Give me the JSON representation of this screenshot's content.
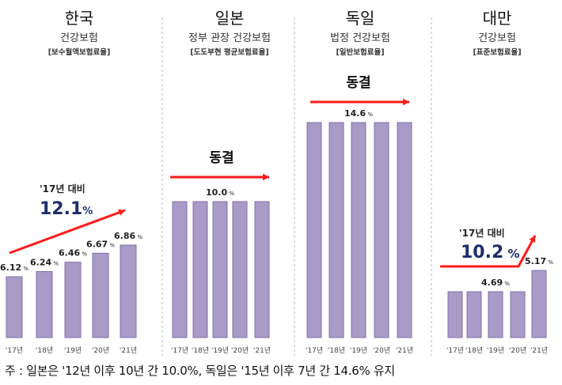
{
  "chart_data": [
    {
      "type": "bar",
      "title": "한국",
      "subtitle": "건강보험",
      "note": "[보수월액보험료율]",
      "categories": [
        "'17년",
        "'18년",
        "'19년",
        "'20년",
        "'21년"
      ],
      "values": [
        6.12,
        6.24,
        6.46,
        6.67,
        6.86
      ],
      "value_labels": [
        "6.12",
        "6.24",
        "6.46",
        "6.67",
        "6.86"
      ],
      "unit": "%",
      "annotation": {
        "caption": "'17년 대비",
        "value": "12.1",
        "unit": "%"
      }
    },
    {
      "type": "bar",
      "title": "일본",
      "subtitle": "정부 관장 건강보험",
      "note": "[도도부현 평균보험료율]",
      "categories": [
        "'17년",
        "'18년",
        "'19년",
        "'20년",
        "'21년"
      ],
      "values": [
        10.0,
        10.0,
        10.0,
        10.0,
        10.0
      ],
      "value_labels": [
        "",
        "",
        "10.0",
        "",
        ""
      ],
      "unit": "%",
      "annotation": {
        "caption": "동결"
      }
    },
    {
      "type": "bar",
      "title": "독일",
      "subtitle": "법정 건강보험",
      "note": "[일반보험료율]",
      "categories": [
        "'17년",
        "'18년",
        "'19년",
        "'20년",
        "'21년"
      ],
      "values": [
        14.6,
        14.6,
        14.6,
        14.6,
        14.6
      ],
      "value_labels": [
        "",
        "",
        "14.6",
        "",
        ""
      ],
      "unit": "%",
      "annotation": {
        "caption": "동결"
      }
    },
    {
      "type": "bar",
      "title": "대만",
      "subtitle": "건강보험",
      "note": "[표준보험료율]",
      "categories": [
        "'17년",
        "'18년",
        "'19년",
        "'20년",
        "'21년"
      ],
      "values": [
        4.69,
        4.69,
        4.69,
        4.69,
        5.17
      ],
      "value_labels": [
        "",
        "",
        "4.69",
        "",
        "5.17"
      ],
      "unit": "%",
      "annotation": {
        "caption": "'17년 대비",
        "value": "10.2",
        "unit": "%"
      }
    }
  ],
  "footnote": "주 : 일본은 '12년 이후 10년 간 10.0%, 독일은 '15년 이후 7년 간 14.6% 유지",
  "colors": {
    "bar": "#a99bc8",
    "bar_stroke": "#7f6fa8",
    "arrow": "#ff1a1a",
    "highlight": "#1f2d6b"
  }
}
